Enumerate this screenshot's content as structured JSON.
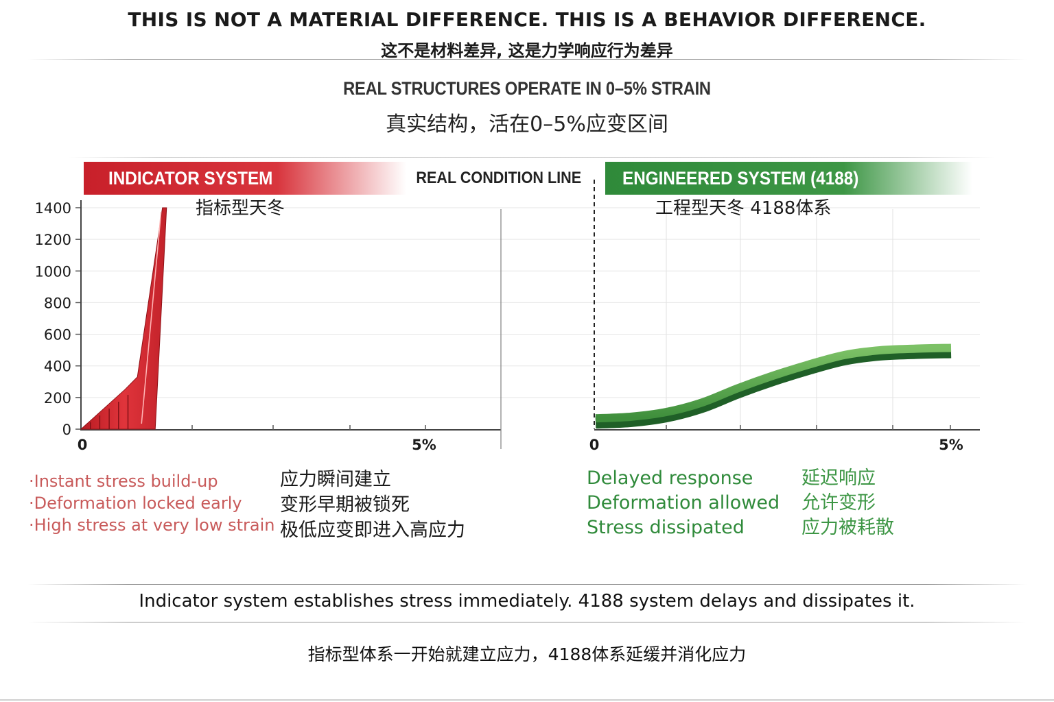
{
  "header": {
    "title_en": "THIS IS NOT A MATERIAL DIFFERENCE. THIS IS A BEHAVIOR DIFFERENCE.",
    "title_zh": "这不是材料差异, 这是力学响应行为差异",
    "subtitle_en": "REAL STRUCTURES OPERATE IN 0–5% STRAIN",
    "subtitle_zh": "真实结构，活在0–5%应变区间"
  },
  "banners": {
    "left": "INDICATOR SYSTEM",
    "middle": "REAL CONDITION LINE",
    "right": "ENGINEERED SYSTEM (4188)"
  },
  "colors": {
    "indicator_red": "#d8262e",
    "engineered_green": "#2f8a3a",
    "engineered_dark": "#1f5f27"
  },
  "chart_data": {
    "type": "line",
    "panels": [
      {
        "title": "指标型天冬",
        "x_tick_labels": [
          "0",
          "5%"
        ],
        "y_tick_labels": [
          "0",
          "200",
          "400",
          "600",
          "800",
          "1000",
          "1200",
          "1400"
        ],
        "ylim": [
          0,
          1400
        ],
        "xlim": [
          0,
          6.7
        ],
        "series": [
          {
            "x": [
              0,
              0.7,
              0.9,
              1.3
            ],
            "y": [
              0,
              250,
              330,
              1400
            ]
          }
        ]
      },
      {
        "title": "工程型天冬 4188体系",
        "x_tick_labels": [
          "0",
          "5%"
        ],
        "ylim": [
          0,
          1400
        ],
        "xlim": [
          0,
          5
        ],
        "series": [
          {
            "x": [
              0,
              0.5,
              1,
              1.5,
              2,
              2.5,
              3,
              3.5,
              4,
              4.5,
              5
            ],
            "y": [
              60,
              70,
              100,
              160,
              250,
              330,
              400,
              460,
              490,
              500,
              505
            ]
          }
        ]
      }
    ],
    "condition_line": "REAL CONDITION LINE"
  },
  "bullets": {
    "left_en": [
      "·Instant stress build-up",
      "·Deformation locked early",
      "·High stress at very low strain"
    ],
    "left_zh": [
      "应力瞬间建立",
      "变形早期被锁死",
      "极低应变即进入高应力"
    ],
    "right_en": [
      "Delayed response",
      "Deformation allowed",
      "Stress dissipated"
    ],
    "right_zh": [
      "延迟响应",
      "允许变形",
      "应力被耗散"
    ]
  },
  "footer": {
    "summary_en": "Indicator system establishes stress immediately. 4188 system delays and dissipates it.",
    "summary_zh": "指标型体系一开始就建立应力，4188体系延缓并消化应力"
  }
}
